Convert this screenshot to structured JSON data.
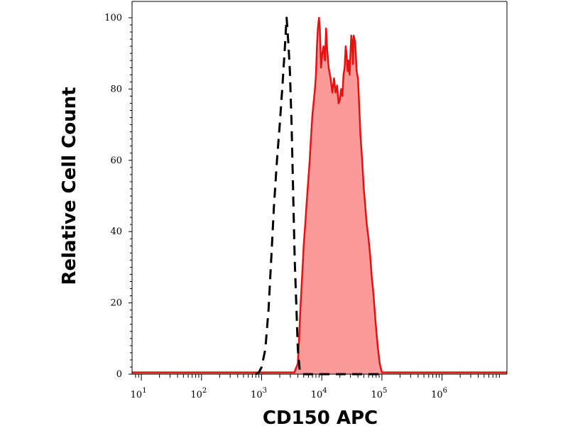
{
  "chart_data": {
    "type": "area",
    "title": "",
    "xlabel": "CD150 APC",
    "ylabel": "Relative Cell Count",
    "x_scale": "log",
    "xlim": [
      7,
      12000000
    ],
    "ylim": [
      0,
      100
    ],
    "x_ticks": [
      {
        "base": "10",
        "exp": "1",
        "value": 10
      },
      {
        "base": "10",
        "exp": "2",
        "value": 100
      },
      {
        "base": "10",
        "exp": "3",
        "value": 1000
      },
      {
        "base": "10",
        "exp": "4",
        "value": 10000
      },
      {
        "base": "10",
        "exp": "5",
        "value": 100000
      },
      {
        "base": "10",
        "exp": "6",
        "value": 1000000
      }
    ],
    "y_ticks": [
      "0",
      "20",
      "40",
      "60",
      "80",
      "100"
    ],
    "grid": false,
    "series": [
      {
        "style": "filled",
        "color": "#e8110f",
        "fill": "#fa9a9a",
        "points": [
          [
            7,
            0.5
          ],
          [
            3500,
            0.5
          ],
          [
            4000,
            3
          ],
          [
            4200,
            10
          ],
          [
            4400,
            18
          ],
          [
            4600,
            24
          ],
          [
            4800,
            30
          ],
          [
            5000,
            36
          ],
          [
            5300,
            42
          ],
          [
            5600,
            48
          ],
          [
            6000,
            55
          ],
          [
            6300,
            60
          ],
          [
            6600,
            66
          ],
          [
            7000,
            73
          ],
          [
            7400,
            77
          ],
          [
            7700,
            80
          ],
          [
            8000,
            84
          ],
          [
            8300,
            92
          ],
          [
            8600,
            97
          ],
          [
            9000,
            100
          ],
          [
            9300,
            97
          ],
          [
            9700,
            86
          ],
          [
            10200,
            90
          ],
          [
            10700,
            92
          ],
          [
            11300,
            88
          ],
          [
            11800,
            97
          ],
          [
            12300,
            91
          ],
          [
            13000,
            86
          ],
          [
            14000,
            83
          ],
          [
            15000,
            79
          ],
          [
            16000,
            83
          ],
          [
            17000,
            79
          ],
          [
            18000,
            81
          ],
          [
            19000,
            76
          ],
          [
            20000,
            77
          ],
          [
            21000,
            80
          ],
          [
            22000,
            78
          ],
          [
            23000,
            84
          ],
          [
            24000,
            86
          ],
          [
            25000,
            92
          ],
          [
            26000,
            89
          ],
          [
            27000,
            85
          ],
          [
            28000,
            88
          ],
          [
            29000,
            84
          ],
          [
            30000,
            90
          ],
          [
            31000,
            95
          ],
          [
            32000,
            93
          ],
          [
            33000,
            87
          ],
          [
            34000,
            95
          ],
          [
            36000,
            93
          ],
          [
            38000,
            85
          ],
          [
            40000,
            83
          ],
          [
            42000,
            75
          ],
          [
            44000,
            67
          ],
          [
            47000,
            60
          ],
          [
            50000,
            52
          ],
          [
            53000,
            47
          ],
          [
            56000,
            42
          ],
          [
            60000,
            38
          ],
          [
            64000,
            33
          ],
          [
            68000,
            27
          ],
          [
            72000,
            23
          ],
          [
            78000,
            15
          ],
          [
            85000,
            8
          ],
          [
            92000,
            3
          ],
          [
            100000,
            0.5
          ],
          [
            12000000,
            0.5
          ]
        ]
      },
      {
        "style": "dashed",
        "color": "#000000",
        "points": [
          [
            800,
            0
          ],
          [
            900,
            0.5
          ],
          [
            1000,
            2
          ],
          [
            1150,
            7
          ],
          [
            1300,
            18
          ],
          [
            1450,
            33
          ],
          [
            1600,
            47
          ],
          [
            1800,
            60
          ],
          [
            2000,
            70
          ],
          [
            2200,
            80
          ],
          [
            2400,
            90
          ],
          [
            2600,
            100
          ],
          [
            2800,
            92
          ],
          [
            2950,
            85
          ],
          [
            3150,
            70
          ],
          [
            3350,
            50
          ],
          [
            3550,
            32
          ],
          [
            3800,
            18
          ],
          [
            4000,
            7
          ],
          [
            4300,
            1
          ],
          [
            4700,
            0
          ],
          [
            8000,
            0
          ],
          [
            100000,
            0
          ]
        ]
      }
    ]
  }
}
